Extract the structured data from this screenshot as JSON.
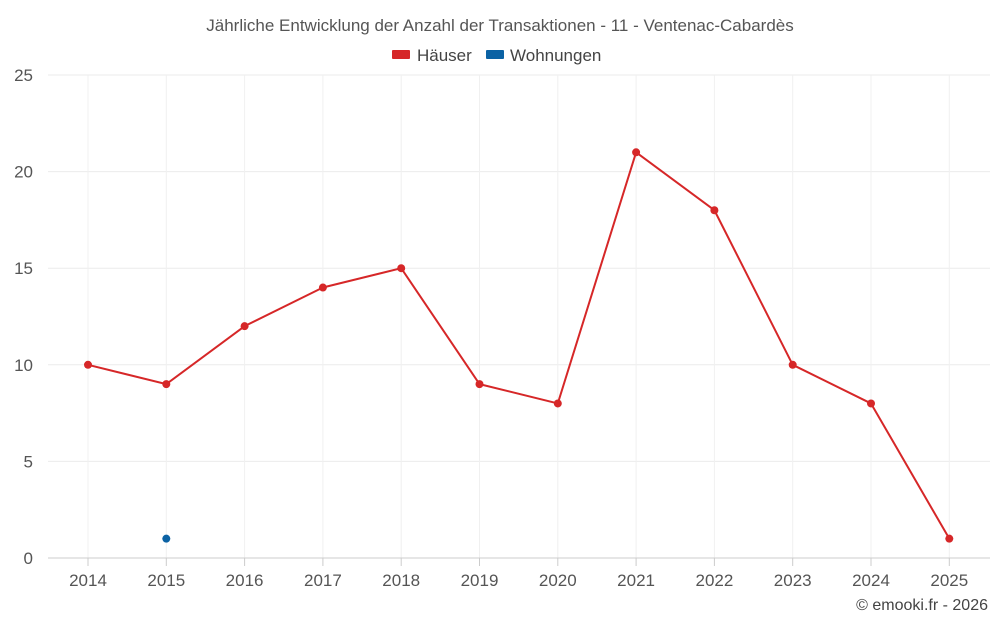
{
  "chart_data": {
    "type": "line",
    "title": "Jährliche Entwicklung der Anzahl der Transaktionen - 11 - Ventenac-Cabardès",
    "categories": [
      "2014",
      "2015",
      "2016",
      "2017",
      "2018",
      "2019",
      "2020",
      "2021",
      "2022",
      "2023",
      "2024",
      "2025"
    ],
    "series": [
      {
        "name": "Häuser",
        "color": "#d62728",
        "values": [
          10,
          9,
          12,
          14,
          15,
          9,
          8,
          21,
          18,
          10,
          8,
          1
        ]
      },
      {
        "name": "Wohnungen",
        "color": "#0b62a4",
        "values": [
          null,
          1,
          null,
          null,
          null,
          null,
          null,
          null,
          null,
          null,
          null,
          null
        ]
      }
    ],
    "ylim": [
      0,
      25
    ],
    "yticks": [
      "0",
      "5",
      "10",
      "15",
      "20",
      "25"
    ],
    "xlabel": "",
    "ylabel": "",
    "grid": true,
    "legend_position": "top-center"
  },
  "credit": "© emooki.fr - 2026"
}
